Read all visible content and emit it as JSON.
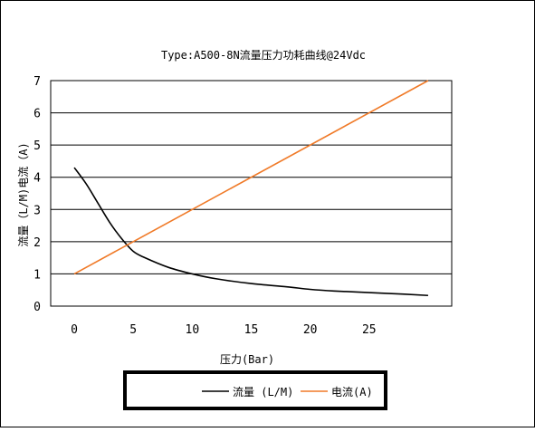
{
  "chart_data": {
    "type": "line",
    "title": "Type:A500-8N流量压力功耗曲线@24Vdc",
    "xlabel": "压力(Bar)",
    "ylabel": "流量（L/M)电流（A)",
    "xlim": [
      -2,
      32
    ],
    "ylim": [
      0,
      7
    ],
    "x_ticks": [
      "0",
      "5",
      "10",
      "15",
      "20",
      "25"
    ],
    "y_ticks": [
      "0",
      "1",
      "2",
      "3",
      "4",
      "5",
      "6",
      "7"
    ],
    "grid": "horizontal",
    "legend_position": "bottom",
    "series": [
      {
        "name": "流量 (L/M)",
        "color": "#000000",
        "x": [
          0,
          1,
          2,
          3,
          4,
          5,
          6,
          8,
          10,
          12,
          15,
          18,
          20,
          22,
          25,
          28,
          30
        ],
        "y": [
          4.3,
          3.8,
          3.2,
          2.6,
          2.1,
          1.7,
          1.5,
          1.2,
          1.0,
          0.85,
          0.7,
          0.6,
          0.52,
          0.47,
          0.42,
          0.37,
          0.33
        ]
      },
      {
        "name": "电流(A)",
        "color": "#F07A28",
        "x": [
          0,
          30
        ],
        "y": [
          1.0,
          7.0
        ]
      }
    ]
  }
}
